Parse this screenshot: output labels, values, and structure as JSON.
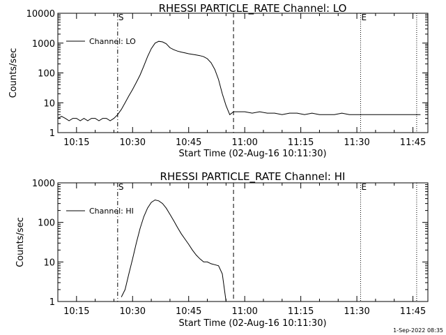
{
  "chart_data": [
    {
      "type": "line",
      "title": "RHESSI PARTICLE_RATE Channel: LO",
      "xlabel": "Start Time (02-Aug-16 10:11:30)",
      "ylabel": "Counts/sec",
      "y_scale": "log",
      "ylim": [
        1,
        10000
      ],
      "xlim": [
        "10:10",
        "11:49"
      ],
      "x_ticks": [
        "10:15",
        "10:30",
        "10:45",
        "11:00",
        "11:15",
        "11:30",
        "11:45"
      ],
      "y_ticks": [
        "1",
        "10",
        "100",
        "1000",
        "10000"
      ],
      "legend": {
        "placement": "top-left",
        "entries": [
          "Channel: LO"
        ]
      },
      "markers": [
        {
          "label": "S",
          "time": "10:26",
          "style": "dash-dot"
        },
        {
          "label": "E",
          "time": "11:31",
          "style": "dotted"
        },
        {
          "label": "",
          "time": "10:57",
          "style": "dashed"
        },
        {
          "label": "",
          "time": "11:46",
          "style": "dotted"
        }
      ],
      "series": [
        {
          "x": [
            "10:10",
            "10:11",
            "10:12",
            "10:13",
            "10:14",
            "10:15",
            "10:16",
            "10:17",
            "10:18",
            "10:19",
            "10:20",
            "10:21",
            "10:22",
            "10:23",
            "10:24",
            "10:25",
            "10:26",
            "10:27",
            "10:28",
            "10:29",
            "10:30",
            "10:31",
            "10:32",
            "10:33",
            "10:34",
            "10:35",
            "10:36",
            "10:37",
            "10:38",
            "10:39",
            "10:40",
            "10:41",
            "10:42",
            "10:43",
            "10:44",
            "10:45",
            "10:46",
            "10:47",
            "10:48",
            "10:49",
            "10:50",
            "10:51",
            "10:52",
            "10:53",
            "10:54",
            "10:55",
            "10:56",
            "10:57",
            "10:58",
            "10:59",
            "11:00",
            "11:02",
            "11:04",
            "11:06",
            "11:08",
            "11:10",
            "11:12",
            "11:14",
            "11:16",
            "11:18",
            "11:20",
            "11:22",
            "11:24",
            "11:26",
            "11:28",
            "11:30",
            "11:32",
            "11:34",
            "11:36",
            "11:38",
            "11:40",
            "11:42",
            "11:44",
            "11:46",
            "11:47"
          ],
          "y": [
            3,
            3.5,
            3,
            2.5,
            3,
            3,
            2.5,
            3,
            2.5,
            3,
            3,
            2.5,
            3,
            3,
            2.5,
            3,
            4,
            6,
            10,
            17,
            28,
            48,
            85,
            170,
            350,
            650,
            1000,
            1150,
            1100,
            950,
            700,
            600,
            540,
            500,
            470,
            440,
            420,
            400,
            380,
            350,
            300,
            220,
            130,
            60,
            20,
            8,
            4,
            5,
            5,
            5,
            5,
            4.5,
            5,
            4.5,
            4.5,
            4,
            4.5,
            4.5,
            4,
            4.5,
            4,
            4,
            4,
            4.5,
            4,
            4,
            4,
            4,
            4,
            4,
            4,
            4,
            4,
            4,
            4
          ]
        }
      ]
    },
    {
      "type": "line",
      "title": "RHESSI PARTICLE_RATE Channel: HI",
      "xlabel": "Start Time (02-Aug-16 10:11:30)",
      "ylabel": "Counts/sec",
      "y_scale": "log",
      "ylim": [
        1,
        1000
      ],
      "xlim": [
        "10:10",
        "11:49"
      ],
      "x_ticks": [
        "10:15",
        "10:30",
        "10:45",
        "11:00",
        "11:15",
        "11:30",
        "11:45"
      ],
      "y_ticks": [
        "1",
        "10",
        "100",
        "1000"
      ],
      "legend": {
        "placement": "top-left",
        "entries": [
          "Channel: HI"
        ]
      },
      "markers": [
        {
          "label": "S",
          "time": "10:26",
          "style": "dash-dot"
        },
        {
          "label": "E",
          "time": "11:31",
          "style": "dotted"
        },
        {
          "label": "",
          "time": "10:57",
          "style": "dashed"
        },
        {
          "label": "",
          "time": "11:46",
          "style": "dotted"
        }
      ],
      "series": [
        {
          "x": [
            "10:27",
            "10:28",
            "10:29",
            "10:30",
            "10:31",
            "10:32",
            "10:33",
            "10:34",
            "10:35",
            "10:36",
            "10:37",
            "10:38",
            "10:39",
            "10:40",
            "10:41",
            "10:42",
            "10:43",
            "10:44",
            "10:45",
            "10:46",
            "10:47",
            "10:48",
            "10:49",
            "10:50",
            "10:51",
            "10:52",
            "10:53",
            "10:54",
            "10:55"
          ],
          "y": [
            1.3,
            2,
            5,
            12,
            30,
            70,
            140,
            230,
            320,
            370,
            350,
            300,
            230,
            160,
            110,
            75,
            52,
            38,
            28,
            20,
            15,
            12,
            10,
            10,
            9,
            8.5,
            8,
            5,
            1
          ]
        }
      ]
    }
  ],
  "footer_timestamp": "1-Sep-2022 08:35"
}
